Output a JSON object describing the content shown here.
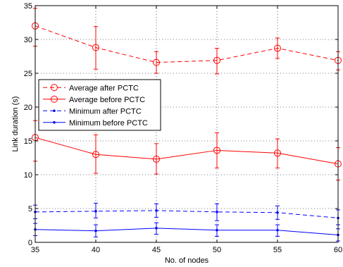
{
  "chart_data": {
    "type": "line",
    "title": "",
    "xlabel": "No. of nodes",
    "ylabel": "Link duration (s)",
    "xlim": [
      35,
      60
    ],
    "ylim": [
      0,
      35
    ],
    "x_ticks": [
      35,
      40,
      45,
      50,
      55,
      60
    ],
    "y_ticks": [
      0,
      5,
      10,
      15,
      20,
      25,
      30,
      35
    ],
    "grid": "dotted",
    "legend_position": "center-left",
    "x": [
      35,
      40,
      45,
      50,
      55,
      60
    ],
    "series": [
      {
        "name": "Average after PCTC",
        "color": "#ff0000",
        "line": "dashed",
        "marker": "circle",
        "values": [
          32.0,
          28.8,
          26.6,
          26.9,
          28.7,
          26.9
        ],
        "err_low": [
          29.0,
          25.6,
          25.0,
          24.9,
          27.2,
          25.5
        ],
        "err_high": [
          34.6,
          31.9,
          28.2,
          28.7,
          30.2,
          28.2
        ]
      },
      {
        "name": "Average before PCTC",
        "color": "#ff0000",
        "line": "solid",
        "marker": "circle",
        "values": [
          15.5,
          13.0,
          12.3,
          13.6,
          13.2,
          11.6
        ],
        "err_low": [
          12.0,
          10.2,
          10.1,
          11.0,
          11.0,
          9.2
        ],
        "err_high": [
          18.0,
          15.9,
          14.6,
          16.2,
          15.3,
          14.0
        ]
      },
      {
        "name": "Minimum after PCTC",
        "color": "#0000ff",
        "line": "dashed",
        "marker": "point",
        "values": [
          4.5,
          4.6,
          4.7,
          4.5,
          4.4,
          3.6
        ],
        "err_low": [
          3.5,
          3.6,
          3.7,
          3.2,
          3.4,
          2.6
        ],
        "err_high": [
          5.5,
          5.8,
          5.7,
          5.7,
          5.4,
          4.8
        ]
      },
      {
        "name": "Minimum before PCTC",
        "color": "#0000ff",
        "line": "solid",
        "marker": "point",
        "values": [
          1.9,
          1.7,
          2.1,
          1.8,
          1.8,
          1.1
        ],
        "err_low": [
          1.0,
          0.8,
          1.2,
          0.9,
          0.9,
          0.2
        ],
        "err_high": [
          2.8,
          2.6,
          2.9,
          2.6,
          2.6,
          2.0
        ]
      }
    ]
  }
}
